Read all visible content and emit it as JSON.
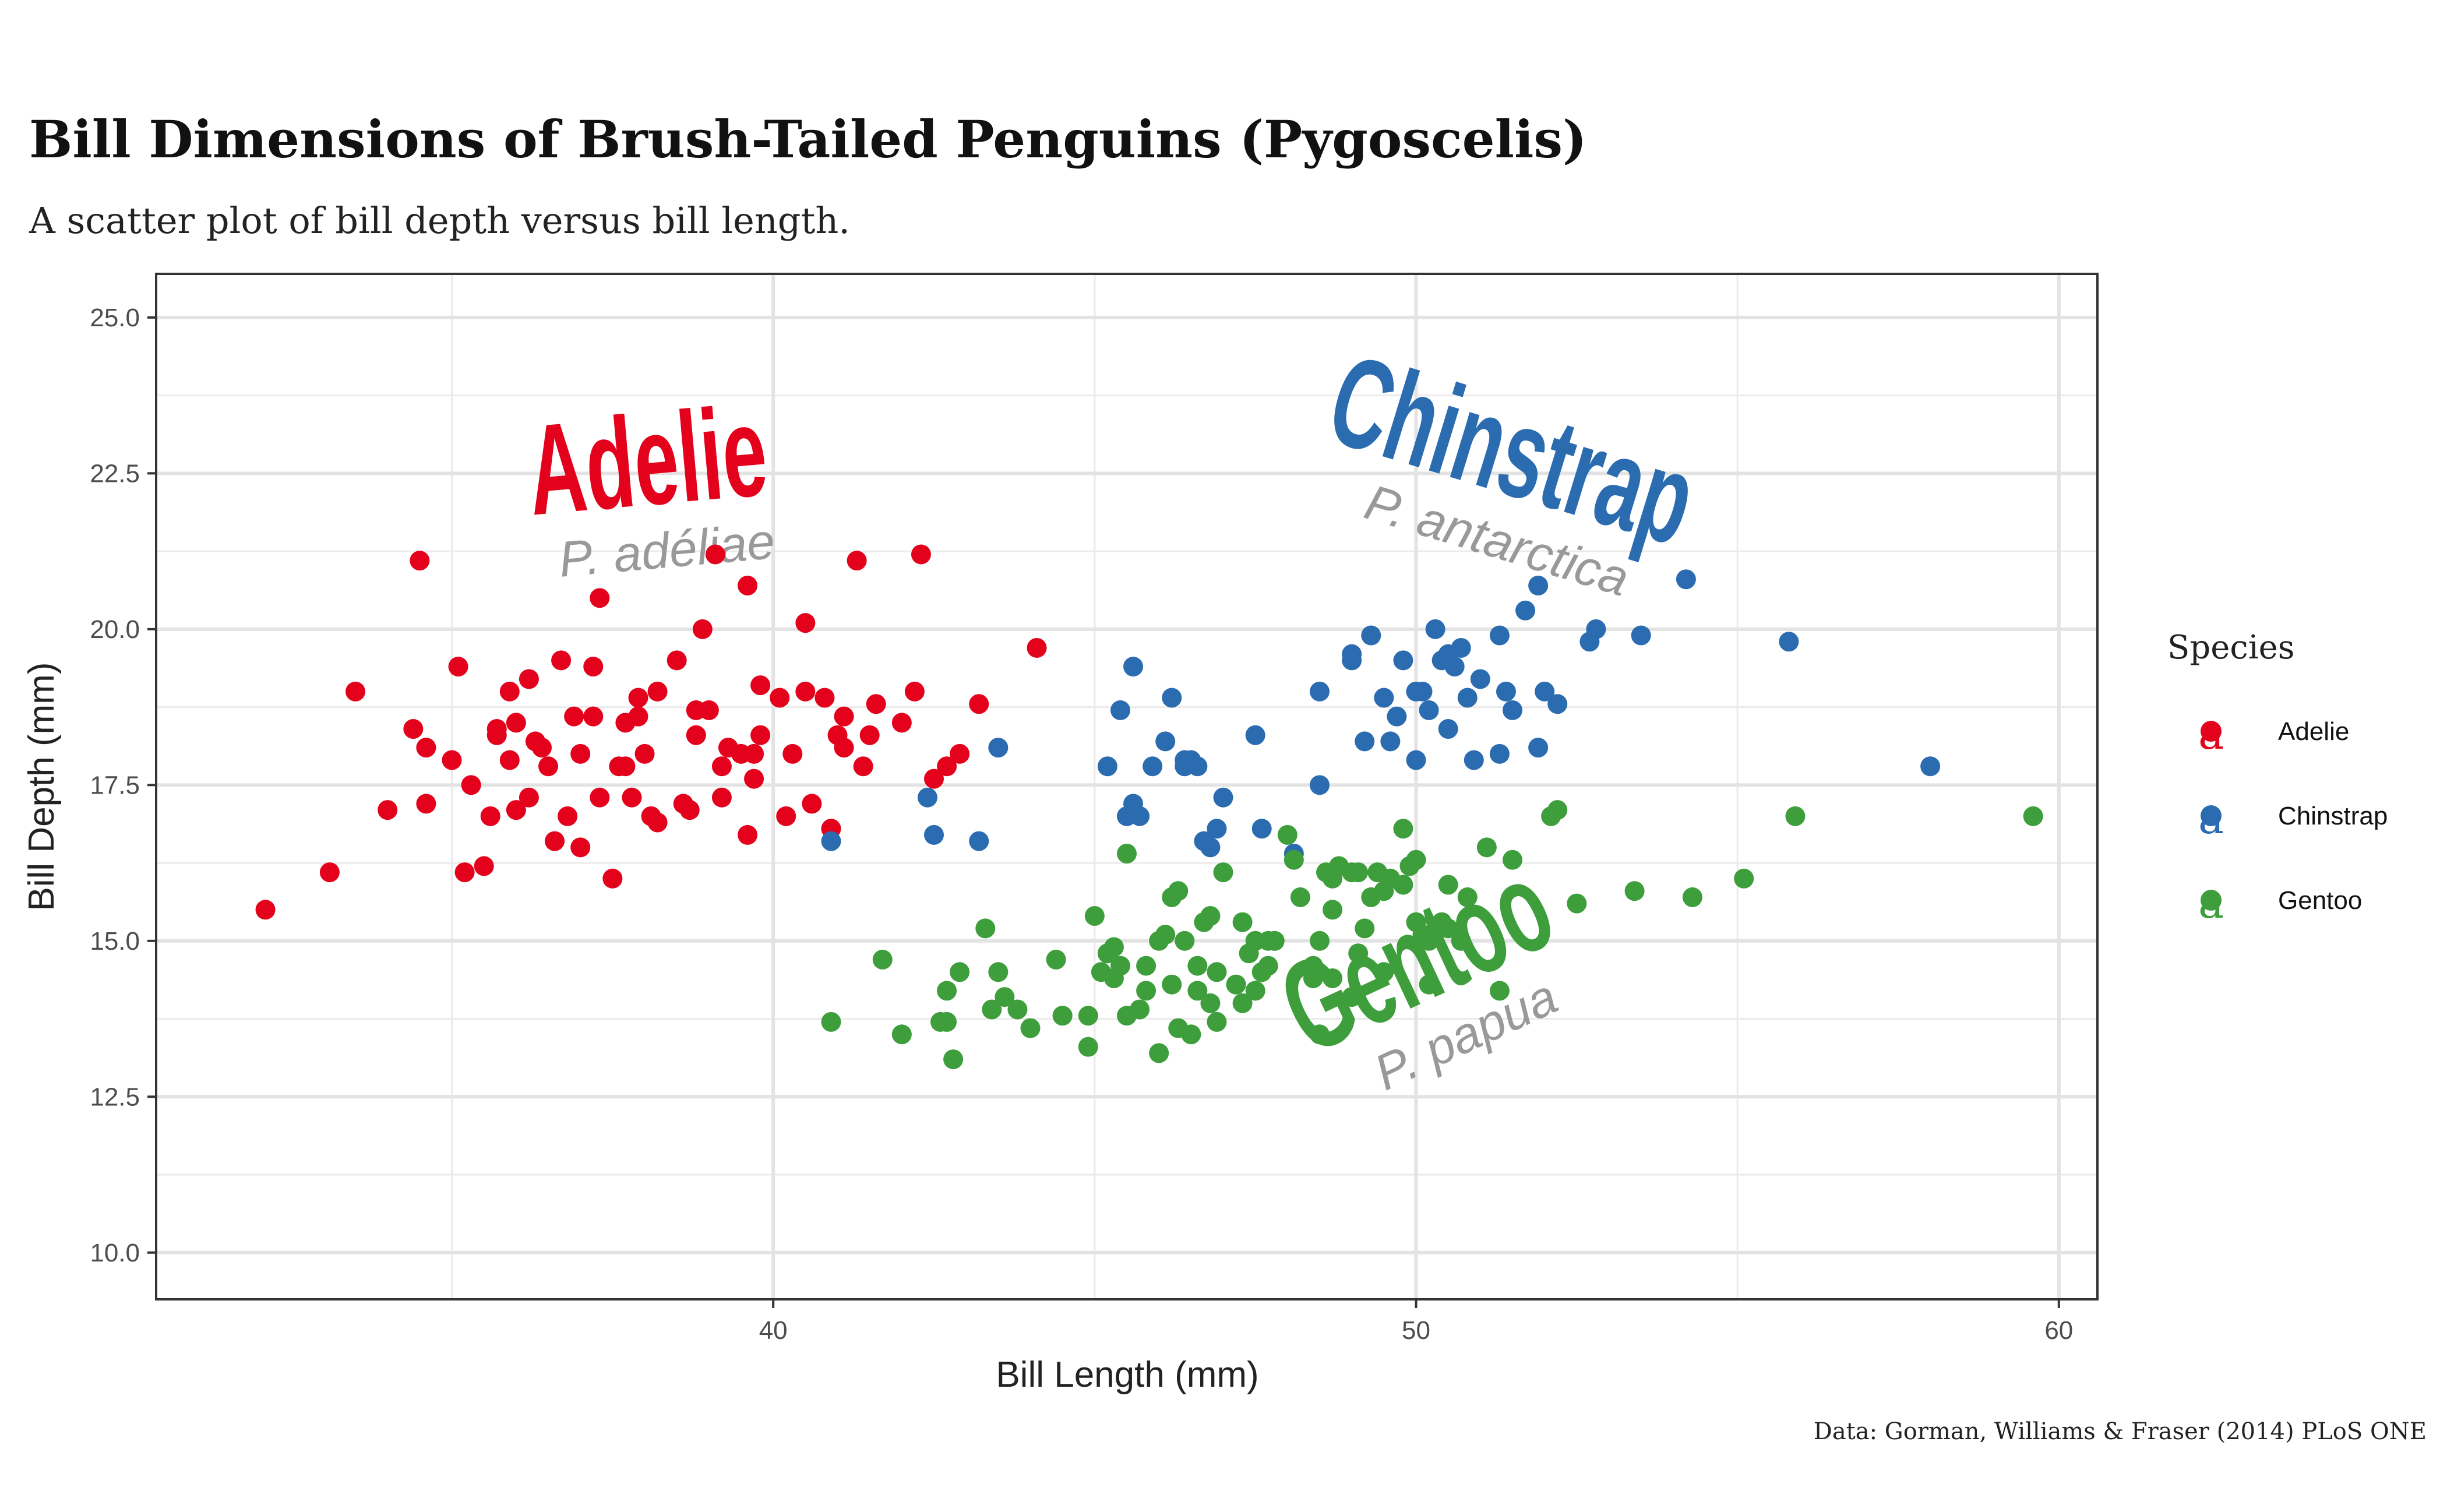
{
  "chart_data": {
    "type": "scatter",
    "title": "Bill Dimensions of Brush-Tailed Penguins (Pygoscelis)",
    "subtitle": "A scatter plot of bill depth versus bill length.",
    "caption": "Data: Gorman, Williams & Fraser (2014) PLoS ONE",
    "xlabel": "Bill Length (mm)",
    "ylabel": "Bill Depth (mm)",
    "xlim": [
      30.4,
      60.6
    ],
    "ylim": [
      9.25,
      25.7
    ],
    "x_ticks": [
      40,
      50,
      60
    ],
    "x_tick_labels": [
      "40",
      "50",
      "60"
    ],
    "x_minor_ticks": [
      35,
      45,
      55
    ],
    "y_ticks": [
      10,
      12.5,
      15,
      17.5,
      20,
      22.5,
      25
    ],
    "y_tick_labels": [
      "10.0",
      "12.5",
      "15.0",
      "17.5",
      "20.0",
      "22.5",
      "25.0"
    ],
    "y_minor_ticks": [
      11.25,
      13.75,
      16.25,
      18.75,
      21.25,
      23.75
    ],
    "grid": true,
    "legend": {
      "title": "Species",
      "placement": "right",
      "key_glyph": "a"
    },
    "series": [
      {
        "name": "Adelie",
        "scientific_name": "P. adéliae",
        "color": "#E3011B",
        "label_anchor": [
          38.1,
          22.0
        ],
        "label_angle": -5,
        "x": [
          32.1,
          33.1,
          33.5,
          34.0,
          34.4,
          34.5,
          34.6,
          35.0,
          35.1,
          35.2,
          35.3,
          35.5,
          35.6,
          35.7,
          35.9,
          36.0,
          36.0,
          36.2,
          36.2,
          36.4,
          36.5,
          36.6,
          36.7,
          36.8,
          37.0,
          37.0,
          37.2,
          37.3,
          37.5,
          37.6,
          37.7,
          37.8,
          37.9,
          38.1,
          38.2,
          38.6,
          38.8,
          38.9,
          39.0,
          39.1,
          39.2,
          39.3,
          39.5,
          39.6,
          39.7,
          39.8,
          40.1,
          40.2,
          40.3,
          40.5,
          40.6,
          40.8,
          40.9,
          41.1,
          41.1,
          41.3,
          41.4,
          41.5,
          41.6,
          42.0,
          42.2,
          42.3,
          42.5,
          42.7,
          42.9,
          43.2,
          44.1,
          34.6,
          35.7,
          36.3,
          37.3,
          37.7,
          38.0,
          38.8,
          39.2,
          39.6,
          36.9,
          37.9,
          38.7,
          39.7,
          35.9,
          38.2,
          39.8,
          38.5,
          37.2,
          40.5,
          41.0
        ],
        "y": [
          15.5,
          16.1,
          19.0,
          17.1,
          18.4,
          21.1,
          17.2,
          17.9,
          19.4,
          16.1,
          17.5,
          16.2,
          17.0,
          18.3,
          19.0,
          17.1,
          18.5,
          17.3,
          19.2,
          18.1,
          17.8,
          16.6,
          19.5,
          17.0,
          18.0,
          16.5,
          19.4,
          20.5,
          16.0,
          17.8,
          18.5,
          17.3,
          18.6,
          17.0,
          19.0,
          17.2,
          18.3,
          20.0,
          18.7,
          21.2,
          17.8,
          18.1,
          18.0,
          20.7,
          17.6,
          19.1,
          18.9,
          17.0,
          18.0,
          20.1,
          17.2,
          18.9,
          16.8,
          18.1,
          18.6,
          21.1,
          17.8,
          18.3,
          18.8,
          18.5,
          19.0,
          21.2,
          17.6,
          17.8,
          18.0,
          18.8,
          19.7,
          18.1,
          18.4,
          18.2,
          17.3,
          17.8,
          18.0,
          18.7,
          17.3,
          16.7,
          18.6,
          18.9,
          17.1,
          18.0,
          17.9,
          16.9,
          18.3,
          19.5,
          18.6,
          19.0,
          18.3
        ]
      },
      {
        "name": "Chinstrap",
        "scientific_name": "P. antarctica",
        "color": "#2B6BB0",
        "label_anchor": [
          51.3,
          22.2
        ],
        "label_angle": 17,
        "x": [
          40.9,
          42.4,
          42.5,
          43.2,
          43.5,
          45.2,
          45.4,
          45.5,
          45.6,
          45.7,
          45.9,
          46.1,
          46.2,
          46.4,
          46.5,
          46.6,
          46.7,
          46.8,
          46.9,
          47.0,
          47.5,
          47.6,
          48.1,
          48.5,
          49.0,
          49.2,
          49.3,
          49.5,
          49.6,
          49.7,
          49.8,
          50.0,
          50.1,
          50.2,
          50.3,
          50.4,
          50.5,
          50.6,
          50.7,
          50.8,
          50.9,
          51.0,
          51.3,
          51.4,
          51.5,
          51.7,
          51.9,
          52.0,
          52.2,
          52.7,
          52.8,
          53.5,
          54.2,
          55.8,
          58.0,
          45.6,
          46.4,
          48.5,
          49.0,
          50.0,
          50.5,
          51.3,
          51.9
        ],
        "y": [
          16.6,
          17.3,
          16.7,
          16.6,
          18.1,
          17.8,
          18.7,
          17.0,
          19.4,
          17.0,
          17.8,
          18.2,
          18.9,
          17.8,
          17.9,
          17.8,
          16.6,
          16.5,
          16.8,
          17.3,
          18.3,
          16.8,
          16.4,
          17.5,
          19.6,
          18.2,
          19.9,
          18.9,
          18.2,
          18.6,
          19.5,
          17.9,
          19.0,
          18.7,
          20.0,
          19.5,
          18.4,
          19.4,
          19.7,
          18.9,
          17.9,
          19.2,
          19.9,
          19.0,
          18.7,
          20.3,
          18.1,
          19.0,
          18.8,
          19.8,
          20.0,
          19.9,
          20.8,
          19.8,
          17.8,
          17.2,
          17.9,
          19.0,
          19.5,
          19.0,
          19.6,
          18.0,
          20.7
        ]
      },
      {
        "name": "Gentoo",
        "scientific_name": "P. papua",
        "color": "#3D9E3B",
        "label_anchor": [
          50.3,
          14.1
        ],
        "label_angle": -25,
        "x": [
          40.9,
          41.7,
          42.0,
          42.6,
          42.7,
          42.8,
          42.9,
          43.3,
          43.4,
          43.5,
          43.6,
          43.8,
          44.0,
          44.4,
          44.5,
          44.9,
          45.0,
          45.1,
          45.2,
          45.3,
          45.4,
          45.5,
          45.7,
          45.8,
          46.0,
          46.1,
          46.2,
          46.3,
          46.4,
          46.5,
          46.6,
          46.7,
          46.8,
          46.9,
          47.0,
          47.2,
          47.3,
          47.4,
          47.5,
          47.6,
          47.7,
          47.8,
          48.1,
          48.2,
          48.4,
          48.5,
          48.6,
          48.7,
          48.8,
          49.0,
          49.1,
          49.2,
          49.3,
          49.4,
          49.5,
          49.6,
          49.8,
          49.9,
          50.0,
          50.1,
          50.2,
          50.4,
          50.5,
          50.7,
          50.8,
          51.1,
          51.3,
          51.5,
          52.1,
          52.2,
          52.5,
          53.4,
          54.3,
          55.1,
          55.9,
          59.6,
          42.7,
          44.5,
          45.2,
          45.8,
          46.2,
          46.8,
          47.3,
          47.8,
          48.4,
          49.1,
          49.8,
          50.5,
          46.3,
          47.5,
          48.7,
          49.5,
          50.2,
          45.5,
          46.0,
          46.9,
          47.7,
          48.5,
          49.0,
          50.0,
          44.9,
          45.3,
          46.6,
          47.2,
          48.0,
          48.7
        ],
        "y": [
          13.7,
          14.7,
          13.5,
          13.7,
          14.2,
          13.1,
          14.5,
          15.2,
          13.9,
          14.5,
          14.1,
          13.9,
          13.6,
          14.7,
          13.8,
          13.3,
          15.4,
          14.5,
          14.8,
          14.4,
          14.6,
          13.8,
          13.9,
          14.6,
          13.2,
          15.1,
          14.3,
          15.8,
          15.0,
          13.5,
          14.2,
          15.3,
          15.4,
          14.5,
          16.1,
          14.3,
          15.3,
          14.8,
          15.0,
          14.5,
          15.0,
          15.0,
          16.3,
          15.7,
          14.4,
          15.0,
          16.1,
          16.0,
          16.2,
          16.1,
          14.8,
          15.2,
          15.7,
          16.1,
          15.8,
          16.0,
          15.9,
          16.2,
          16.3,
          15.1,
          14.3,
          15.3,
          15.9,
          15.0,
          15.7,
          16.5,
          14.2,
          16.3,
          17.0,
          17.1,
          15.6,
          15.8,
          15.7,
          16.0,
          17.0,
          17.0,
          13.7,
          13.8,
          14.8,
          14.2,
          15.7,
          14.0,
          14.0,
          15.0,
          14.6,
          16.1,
          16.8,
          15.2,
          13.6,
          14.2,
          15.5,
          14.5,
          15.0,
          16.4,
          15.0,
          13.7,
          14.6,
          13.5,
          14.1,
          15.3,
          13.8,
          14.9,
          14.6,
          14.3,
          16.7,
          14.4
        ]
      }
    ]
  }
}
